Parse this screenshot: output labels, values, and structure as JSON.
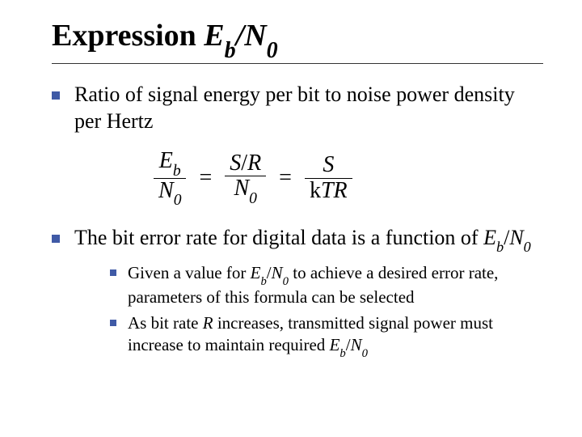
{
  "title": {
    "prefix": "Expression ",
    "sym_E": "E",
    "sub_b": "b",
    "slash": "/",
    "sym_N": "N",
    "sub_0": "0"
  },
  "bullets": [
    {
      "text": "Ratio of signal energy per bit to noise power density per Hertz"
    }
  ],
  "equation": {
    "f1": {
      "num_sym": "E",
      "num_sub": "b",
      "den_sym": "N",
      "den_sub": "0"
    },
    "eq1": "=",
    "f2": {
      "num_left": "S",
      "num_slash": "/",
      "num_right": "R",
      "den_sym": "N",
      "den_sub": "0"
    },
    "eq2": "=",
    "f3": {
      "num": "S",
      "den_k": "k",
      "den_T": "T",
      "den_R": "R"
    }
  },
  "bullet2_parts": {
    "a": "The bit error rate for digital data is a function of ",
    "E": "E",
    "b": "b",
    "slash": "/",
    "N": "N",
    "z": "0"
  },
  "sub_bullets": [
    {
      "p1": "Given a value for ",
      "E": "E",
      "b": "b",
      "slash": "/",
      "N": "N",
      "z": "0",
      "p2": " to achieve a desired error rate, parameters of this formula can be selected"
    },
    {
      "p1": "As bit rate ",
      "R": "R",
      "p2": " increases, transmitted signal power must increase to maintain required ",
      "E": "E",
      "b": "b",
      "slash": "/",
      "N": "N",
      "z": "0"
    }
  ],
  "colors": {
    "bullet": "#3f5aa6",
    "text": "#000000",
    "bg": "#ffffff",
    "rule": "#333333"
  }
}
